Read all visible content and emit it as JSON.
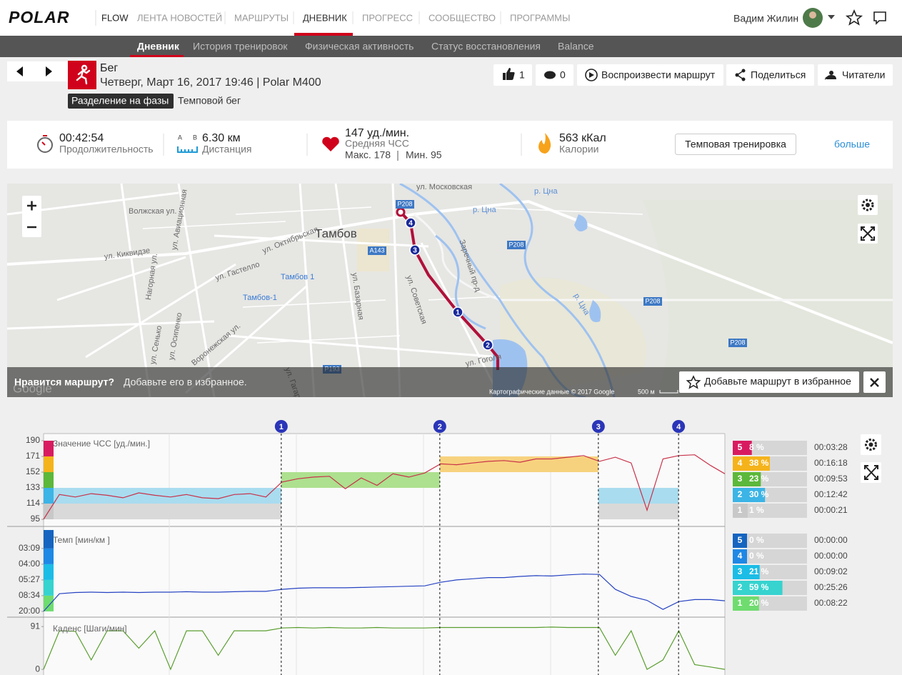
{
  "header": {
    "logo": "POLAR",
    "flow": "FLOW",
    "nav": [
      "ЛЕНТА НОВОСТЕЙ",
      "МАРШРУТЫ",
      "ДНЕВНИК",
      "ПРОГРЕСС",
      "СООБЩЕСТВО",
      "ПРОГРАММЫ"
    ],
    "user": "Вадим Жилин"
  },
  "subnav": [
    "Дневник",
    "История тренировок",
    "Физическая активность",
    "Статус восстановления",
    "Balance"
  ],
  "workout": {
    "sport": "Бег",
    "date": "Четверг, Март 16, 2017 19:46 | Polar M400",
    "phase_tag": "Разделение на фазы",
    "phase": "Темповой бег",
    "likes": 1,
    "comments": 0,
    "actions": [
      "Воспроизвести маршрут",
      "Поделиться",
      "Читатели"
    ]
  },
  "stats": {
    "duration": "00:42:54",
    "duration_label": "Продолжительность",
    "ab": [
      "A",
      "B"
    ],
    "distance": "6.30 км",
    "distance_label": "Дистанция",
    "hr": "147 уд./мин.",
    "hr_label": "Средняя ЧСС",
    "hr_max": "Макс. 178",
    "hr_min": "Мин. 95",
    "calories": "563 кКал",
    "calories_label": "Калории",
    "target": "Темповая тренировка",
    "more": "больше"
  },
  "map": {
    "city": "Тамбов",
    "streets": [
      "ул. Московская",
      "Волжская ул.",
      "ул. Авиационная",
      "ул. Октябрьская",
      "ул. Киквидзе",
      "Нагорная ул.",
      "ул. Гастелло",
      "ул. Базарная",
      "ул. Советская",
      "Заречный пр-д",
      "ул. Сенько",
      "ул. Осипенко",
      "Воронежская ул.",
      "ул. Гоголя",
      "ул. Гагарина"
    ],
    "rivers": [
      "р. Цна",
      "р. Цна",
      "р. Цна"
    ],
    "stations": [
      "Тамбов 1",
      "Тамбов-1"
    ],
    "roads": [
      "P208",
      "P208",
      "P208",
      "P208",
      "A143",
      "P193"
    ],
    "banner_question": "Нравится маршрут?",
    "banner_text": "Добавьте его в избранное.",
    "favorite": "Добавьте маршрут в избранное",
    "attribution": "Картографические данные © 2017 Google",
    "scale": "500 м",
    "google": "Google"
  },
  "chart_data": [
    {
      "type": "line",
      "title": "Значение ЧСС [уд./мин.]",
      "color": "#c8324a",
      "x": [
        0,
        60,
        120,
        180,
        240,
        300,
        360,
        420,
        480,
        540,
        600,
        660,
        720,
        780,
        840,
        900,
        960,
        1020,
        1080,
        1140,
        1200,
        1260,
        1320,
        1380,
        1440,
        1500,
        1560,
        1620,
        1680,
        1740,
        1800,
        1860,
        1920,
        1980,
        2040,
        2100,
        2160,
        2220,
        2280,
        2340,
        2400,
        2460,
        2520,
        2574
      ],
      "values": [
        95,
        125,
        122,
        126,
        124,
        121,
        127,
        124,
        122,
        125,
        121,
        120,
        125,
        126,
        122,
        140,
        144,
        146,
        147,
        132,
        145,
        136,
        150,
        146,
        151,
        162,
        161,
        163,
        165,
        166,
        164,
        168,
        168,
        170,
        172,
        165,
        170,
        163,
        106,
        168,
        172,
        173,
        160,
        150
      ],
      "xlim": [
        0,
        2574
      ],
      "ylim": [
        86.4,
        198.6
      ],
      "yticks": [
        95,
        114,
        133,
        152,
        171,
        190
      ],
      "laps": {
        "x": [
          898,
          1497,
          2096,
          2399
        ],
        "labels": [
          "1",
          "2",
          "3",
          "4"
        ]
      },
      "target_zones": [
        {
          "from": 0,
          "to": 898,
          "low": 95,
          "high": 114,
          "color": "#d9d9d9"
        },
        {
          "from": 0,
          "to": 898,
          "low": 114,
          "high": 133,
          "color": "#a9dcef"
        },
        {
          "from": 898,
          "to": 1497,
          "low": 133,
          "high": 152,
          "color": "#ade08f"
        },
        {
          "from": 1497,
          "to": 2096,
          "low": 152,
          "high": 171,
          "color": "#f7d27e"
        },
        {
          "from": 2096,
          "to": 2399,
          "low": 95,
          "high": 114,
          "color": "#d9d9d9"
        },
        {
          "from": 2096,
          "to": 2399,
          "low": 114,
          "high": 133,
          "color": "#a9dcef"
        }
      ],
      "zones": {
        "labels": [
          "5",
          "4",
          "3",
          "2",
          "1"
        ],
        "values": [
          8,
          38,
          23,
          30,
          1
        ],
        "value_labels": [
          "8 %",
          "38 %",
          "23 %",
          "30 %",
          "1 %"
        ],
        "times": [
          "00:03:28",
          "00:16:18",
          "00:09:53",
          "00:12:42",
          "00:00:21"
        ],
        "colors": [
          "#d81b60",
          "#f5b31b",
          "#5cb83a",
          "#3cb4e6",
          "#c8c8c8"
        ]
      }
    },
    {
      "type": "line",
      "title": "Темп [мин/км ]",
      "color": "#2743c2",
      "x": [
        0,
        60,
        120,
        180,
        240,
        300,
        360,
        420,
        480,
        540,
        600,
        660,
        720,
        780,
        840,
        900,
        960,
        1020,
        1080,
        1140,
        1200,
        1260,
        1320,
        1380,
        1440,
        1500,
        1560,
        1620,
        1680,
        1740,
        1800,
        1860,
        1920,
        1980,
        2040,
        2100,
        2160,
        2220,
        2280,
        2340,
        2400,
        2460,
        2520,
        2574
      ],
      "values": [
        3,
        7.5,
        7.8,
        7.9,
        7.8,
        7.9,
        7.8,
        7.9,
        7.9,
        8,
        7.9,
        7.9,
        8,
        8.1,
        8.1,
        8.6,
        8.9,
        9,
        9,
        9,
        9.1,
        9.2,
        9.3,
        9.4,
        9.5,
        10.4,
        11,
        11.3,
        11.6,
        11.6,
        11.9,
        12.1,
        12,
        12.3,
        12.5,
        12.4,
        8.6,
        6.8,
        5.8,
        3.5,
        5.5,
        6,
        6,
        5.7
      ],
      "xlim": [
        0,
        2574
      ],
      "ylim": [
        1.9,
        23.7
      ],
      "yticks": [
        {
          "value": 3,
          "label": "20:00"
        },
        {
          "value": 7,
          "label": "08:34"
        },
        {
          "value": 11,
          "label": "05:27"
        },
        {
          "value": 15,
          "label": "04:00"
        },
        {
          "value": 19,
          "label": "03:09"
        }
      ],
      "zones": {
        "labels": [
          "5",
          "4",
          "3",
          "2",
          "1"
        ],
        "values": [
          0,
          0,
          21,
          59,
          20
        ],
        "value_labels": [
          "0 %",
          "0 %",
          "21 %",
          "59 %",
          "20 %"
        ],
        "times": [
          "00:00:00",
          "00:00:00",
          "00:09:02",
          "00:25:26",
          "00:08:22"
        ],
        "colors": [
          "#1565c0",
          "#1e88e5",
          "#1bbde6",
          "#36d3cf",
          "#6fdc6f"
        ]
      }
    },
    {
      "type": "line",
      "title": "Каденс [Шаги/мин]",
      "color": "#5a9e2f",
      "x": [
        0,
        60,
        120,
        180,
        240,
        300,
        360,
        420,
        480,
        540,
        600,
        660,
        720,
        780,
        840,
        900,
        960,
        1020,
        1080,
        1140,
        1200,
        1260,
        1320,
        1380,
        1440,
        1500,
        1560,
        1620,
        1680,
        1740,
        1800,
        1860,
        1920,
        1980,
        2040,
        2100,
        2160,
        2220,
        2280,
        2340,
        2400,
        2460,
        2520,
        2574
      ],
      "values": [
        0,
        82,
        81,
        20,
        82,
        82,
        45,
        82,
        0,
        82,
        82,
        30,
        82,
        82,
        82,
        88,
        89,
        88,
        89,
        88,
        88,
        89,
        88,
        88,
        88,
        89,
        89,
        89,
        89,
        89,
        89,
        89,
        90,
        89,
        89,
        89,
        30,
        82,
        0,
        20,
        82,
        10,
        5,
        0
      ],
      "xlim": [
        0,
        2574
      ],
      "ylim": [
        -12,
        108
      ],
      "yticks": [
        0,
        91
      ]
    }
  ]
}
